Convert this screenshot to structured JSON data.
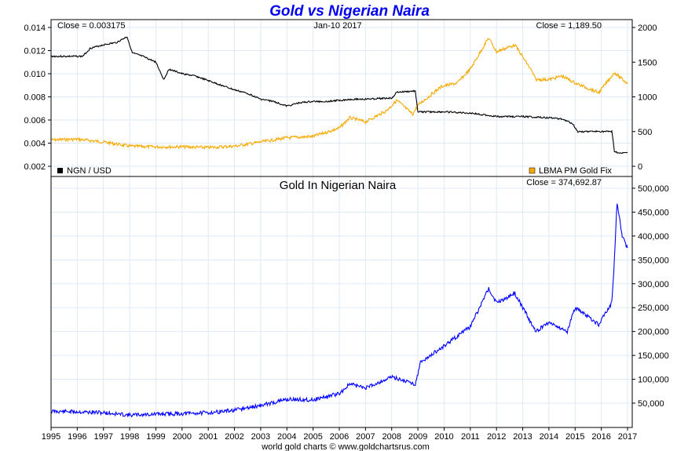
{
  "chart_data": [
    {
      "type": "line",
      "title": "Gold vs Nigerian Naira",
      "date_label": "Jan-10  2017",
      "left_close": "Close = 0.003175",
      "right_close": "Close = 1,189.50",
      "left_ylim": [
        0.001,
        0.0145
      ],
      "left_ticks": [
        "0.014",
        "0.012",
        "0.010",
        "0.008",
        "0.006",
        "0.004",
        "0.002"
      ],
      "right_ylim": [
        -100,
        2000
      ],
      "right_ticks": [
        "2000",
        "1500",
        "1000",
        "500",
        "0"
      ],
      "series": [
        {
          "name": "NGN / USD",
          "axis": "left",
          "color": "#000000",
          "x": [
            1995,
            1996.2,
            1996.5,
            1997,
            1997.5,
            1997.9,
            1998.1,
            1998.5,
            1999,
            1999.3,
            1999.5,
            2000,
            2000.5,
            2001,
            2001.5,
            2002,
            2002.5,
            2003,
            2003.5,
            2004,
            2004.5,
            2005,
            2005.5,
            2006,
            2006.5,
            2007,
            2008,
            2008.2,
            2008.9,
            2009,
            2010,
            2011,
            2012,
            2013,
            2014,
            2014.5,
            2014.9,
            2015.1,
            2016.4,
            2016.5,
            2016.7,
            2017
          ],
          "y": [
            0.0115,
            0.0115,
            0.0122,
            0.0125,
            0.0127,
            0.0132,
            0.0118,
            0.0115,
            0.011,
            0.0095,
            0.0104,
            0.01,
            0.0098,
            0.0094,
            0.009,
            0.0086,
            0.0083,
            0.0078,
            0.0076,
            0.0072,
            0.0075,
            0.0076,
            0.0076,
            0.0077,
            0.0078,
            0.0078,
            0.0079,
            0.0084,
            0.0085,
            0.0067,
            0.0067,
            0.0066,
            0.0063,
            0.0063,
            0.0062,
            0.0061,
            0.0057,
            0.005,
            0.005,
            0.0033,
            0.0031,
            0.00318
          ]
        },
        {
          "name": "LBMA PM Gold Fix",
          "axis": "right",
          "color": "#f5a800",
          "x": [
            1995,
            1996,
            1997,
            1998,
            1999,
            2000,
            2001,
            2002,
            2003,
            2004,
            2005,
            2006,
            2006.4,
            2007,
            2007.8,
            2008.2,
            2008.8,
            2009,
            2009.9,
            2010.5,
            2011,
            2011.7,
            2012,
            2012.7,
            2013.3,
            2013.5,
            2014,
            2014.5,
            2015,
            2015.9,
            2016.5,
            2017
          ],
          "y": [
            380,
            390,
            350,
            290,
            280,
            280,
            270,
            290,
            350,
            410,
            430,
            550,
            700,
            640,
            800,
            950,
            750,
            880,
            1150,
            1200,
            1400,
            1850,
            1650,
            1750,
            1400,
            1250,
            1250,
            1300,
            1200,
            1060,
            1350,
            1190
          ]
        }
      ],
      "x_range": [
        1995,
        2017.1
      ]
    },
    {
      "type": "line",
      "title": "Gold In Nigerian Naira",
      "close": "Close = 374,692.87",
      "ylim": [
        0,
        520000
      ],
      "yticks": [
        "500,000",
        "450,000",
        "400,000",
        "350,000",
        "300,000",
        "250,000",
        "200,000",
        "150,000",
        "100,000",
        "50,000"
      ],
      "xticks": [
        "1995",
        "1996",
        "1997",
        "1998",
        "1999",
        "2000",
        "2001",
        "2002",
        "2003",
        "2004",
        "2005",
        "2006",
        "2007",
        "2008",
        "2009",
        "2010",
        "2011",
        "2012",
        "2013",
        "2014",
        "2015",
        "2016",
        "2017"
      ],
      "series": [
        {
          "name": "Gold In Nigerian Naira",
          "color": "#0000ff",
          "x": [
            1995,
            1996,
            1997,
            1998,
            1999,
            2000,
            2001,
            2002,
            2003,
            2004,
            2005,
            2006,
            2006.4,
            2007,
            2008,
            2008.9,
            2009.1,
            2010,
            2011,
            2011.7,
            2012,
            2012.7,
            2013.5,
            2014,
            2014.7,
            2015,
            2015.9,
            2016.4,
            2016.5,
            2016.6,
            2016.8,
            2017
          ],
          "y": [
            33000,
            32000,
            30000,
            25000,
            27000,
            28000,
            30000,
            35000,
            45000,
            58000,
            57000,
            70000,
            90000,
            82000,
            105000,
            90000,
            135000,
            170000,
            210000,
            290000,
            260000,
            280000,
            200000,
            220000,
            200000,
            250000,
            215000,
            260000,
            350000,
            470000,
            400000,
            375000
          ]
        }
      ]
    }
  ],
  "footer": "world gold charts © www.goldchartsrus.com"
}
